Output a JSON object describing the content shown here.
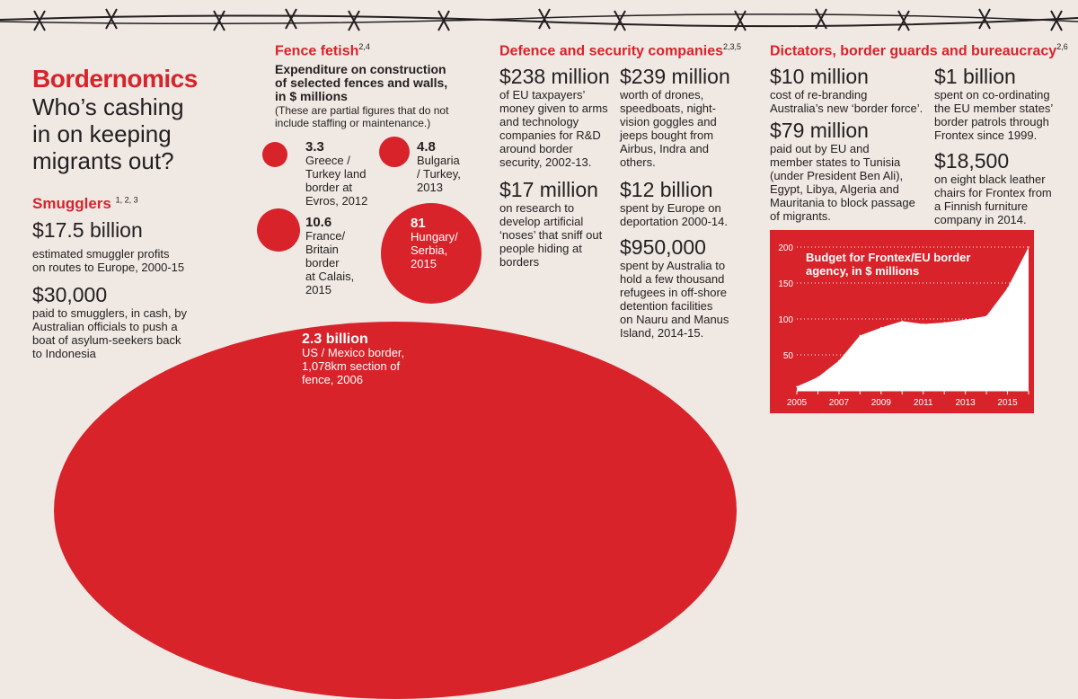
{
  "header": {
    "title": "Bordernomics",
    "subtitle_lines": [
      "Who’s cashing",
      "in on keeping",
      "migrants out?"
    ]
  },
  "smugglers": {
    "heading": "Smugglers",
    "refs": "1, 2, 3",
    "item1_value": "$17.5 billion",
    "item1_desc_lines": [
      "estimated smuggler profits",
      "on routes to Europe, 2000-15"
    ],
    "item2_value": "$30,000",
    "item2_desc_lines": [
      "paid to smugglers, in cash, by",
      "Australian officials to push a",
      "boat of asylum-seekers back",
      "to Indonesia"
    ]
  },
  "fence": {
    "heading": "Fence fetish",
    "refs": "2,4",
    "intro_lines": [
      "Expenditure on construction",
      "of selected fences and walls,",
      "in $ millions"
    ],
    "note_lines": [
      "(These are partial figures that do not",
      "include staffing or maintenance.)"
    ],
    "items": [
      {
        "value": "3.3",
        "value_num": 3.3,
        "lines": [
          "Greece /",
          "Turkey land",
          "border at",
          "Evros, 2012"
        ]
      },
      {
        "value": "4.8",
        "value_num": 4.8,
        "lines": [
          "Bulgaria",
          "/ Turkey,",
          "2013"
        ]
      },
      {
        "value": "10.6",
        "value_num": 10.6,
        "lines": [
          "France/",
          "Britain",
          "border",
          "at Calais,",
          "2015"
        ]
      },
      {
        "value": "81",
        "value_num": 81,
        "lines": [
          "Hungary/",
          "Serbia,",
          "2015"
        ]
      }
    ],
    "big_item": {
      "value": "2.3 billion",
      "lines": [
        "US / Mexico border,",
        "1,078km section of",
        "fence, 2006"
      ]
    }
  },
  "defence": {
    "heading": "Defence and security companies",
    "refs": "2,3,5",
    "items": [
      {
        "value": "$238 million",
        "lines": [
          "of EU taxpayers’",
          "money given to arms",
          "and technology",
          "companies for R&D",
          "around border",
          "security, 2002-13."
        ]
      },
      {
        "value": "$239 million",
        "lines": [
          "worth of drones,",
          "speedboats, night-",
          "vision goggles and",
          "jeeps bought from",
          "Airbus, Indra and",
          "others."
        ]
      },
      {
        "value": "$17 million",
        "lines": [
          "on research to",
          "develop artificial",
          "‘noses’ that sniff out",
          "people hiding at",
          "borders"
        ]
      },
      {
        "value": "$12 billion",
        "lines": [
          "spent by Europe on",
          "deportation 2000-14."
        ]
      },
      {
        "value": "$950,000",
        "lines": [
          "spent by Australia to",
          "hold a few thousand",
          "refugees in off-shore",
          "detention facilities",
          "on Nauru and Manus",
          "Island, 2014-15."
        ]
      }
    ]
  },
  "dictators": {
    "heading": "Dictators, border guards and bureaucracy",
    "refs": "2,6",
    "items": [
      {
        "value": "$10 million",
        "lines": [
          "cost of re-branding",
          "Australia’s new ‘border force’."
        ]
      },
      {
        "value": "$79 million",
        "lines": [
          "paid out by EU and",
          "member states to Tunisia",
          "(under President Ben Ali),",
          "Egypt, Libya, Algeria and",
          "Mauritania to block passage",
          "of migrants."
        ]
      },
      {
        "value": "$1 billion",
        "lines": [
          "spent on co-ordinating",
          "the EU member states’",
          "border patrols through",
          "Frontex since 1999."
        ]
      },
      {
        "value": "$18,500",
        "lines": [
          "on eight black leather",
          "chairs for Frontex from",
          "a Finnish furniture",
          "company in 2014."
        ]
      }
    ]
  },
  "chart_data": {
    "type": "area",
    "title_lines": [
      "Budget for Frontex/EU border",
      "agency, in $ millions"
    ],
    "x": [
      2005,
      2006,
      2007,
      2008,
      2009,
      2010,
      2011,
      2012,
      2013,
      2014,
      2015,
      2016
    ],
    "values": [
      6,
      19,
      42,
      77,
      88,
      97,
      93,
      95,
      99,
      104,
      143,
      200
    ],
    "x_ticks": [
      2005,
      2007,
      2009,
      2011,
      2013,
      2015
    ],
    "y_ticks": [
      50,
      100,
      150,
      200
    ],
    "xlim": [
      2005,
      2016
    ],
    "ylim": [
      0,
      200
    ],
    "colors": {
      "background": "#d8232a",
      "area": "#ffffff",
      "grid": "#ffffff"
    }
  },
  "colors": {
    "accent": "#d8232a",
    "background": "#efe8e3",
    "text": "#231f20"
  }
}
